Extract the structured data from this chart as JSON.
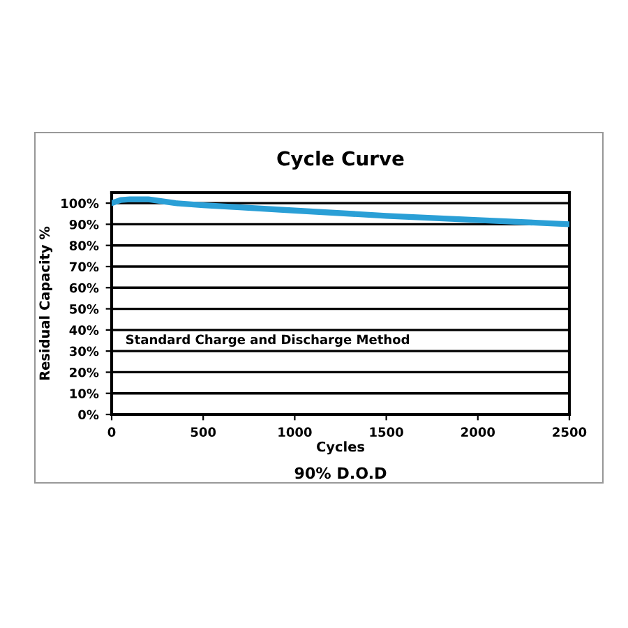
{
  "chart_data": {
    "type": "line",
    "title": "Cycle Curve",
    "xlabel": "Cycles",
    "ylabel": "Residual Capacity %",
    "annotations": [
      "Standard Charge and Discharge Method",
      "90% D.O.D"
    ],
    "series": [
      {
        "color": "#2a9fd6",
        "x": [
          0,
          50,
          100,
          200,
          350,
          500,
          700,
          1000,
          1500,
          2000,
          2500
        ],
        "values": [
          100,
          101.5,
          101.8,
          101.8,
          100,
          99,
          98,
          96.5,
          94,
          92,
          90
        ]
      }
    ],
    "xlim": [
      0,
      2500
    ],
    "xticks": [
      0,
      500,
      1000,
      1500,
      2000,
      2500
    ],
    "ylim": [
      0,
      105
    ],
    "yticks": [
      {
        "value": 0,
        "label": "0%"
      },
      {
        "value": 10,
        "label": "10%"
      },
      {
        "value": 20,
        "label": "20%"
      },
      {
        "value": 30,
        "label": "30%"
      },
      {
        "value": 40,
        "label": "40%"
      },
      {
        "value": 50,
        "label": "50%"
      },
      {
        "value": 60,
        "label": "60%"
      },
      {
        "value": 70,
        "label": "70%"
      },
      {
        "value": 80,
        "label": "80%"
      },
      {
        "value": 90,
        "label": "90%"
      },
      {
        "value": 100,
        "label": "100%"
      }
    ],
    "grid": "y",
    "legend": false,
    "marker": "none",
    "line_style": "solid"
  }
}
